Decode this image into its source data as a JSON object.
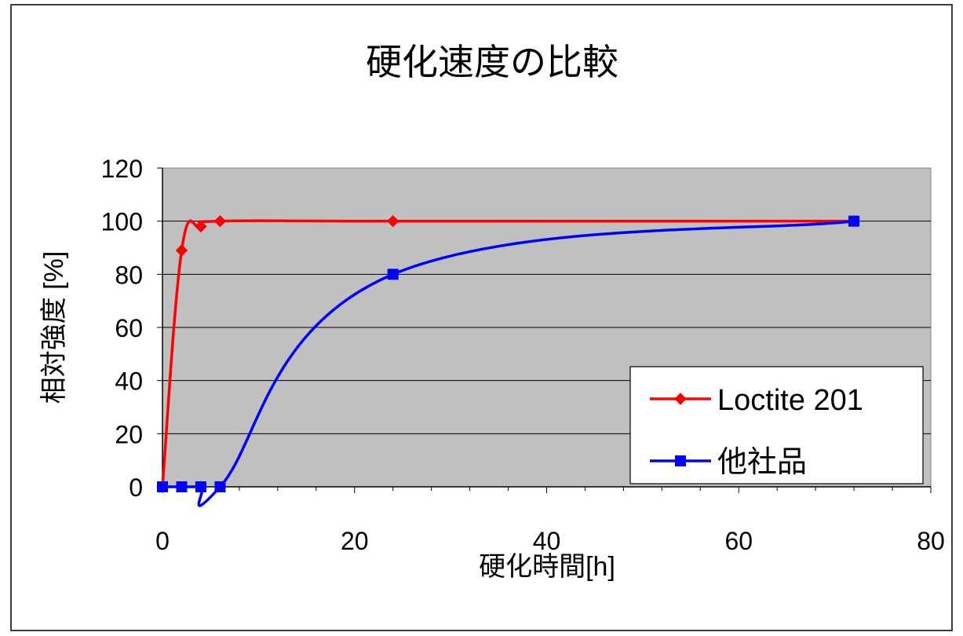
{
  "chart_data": {
    "type": "line",
    "title": "硬化速度の比較",
    "xlabel": "硬化時間[h]",
    "ylabel": "相対強度 [%]",
    "xlim": [
      0,
      80
    ],
    "ylim": [
      0,
      120
    ],
    "x_ticks": [
      "0",
      "20",
      "40",
      "60",
      "80"
    ],
    "y_ticks": [
      "0",
      "20",
      "40",
      "60",
      "80",
      "100",
      "120"
    ],
    "grid": "horizontal",
    "legend_position": "bottom-right",
    "plot_background": "#c0c0c0",
    "series": [
      {
        "name": "Loctite 201",
        "color": "#ff0000",
        "marker": "diamond",
        "x": [
          0,
          2,
          4,
          6,
          24,
          72
        ],
        "y": [
          0,
          89,
          98,
          100,
          100,
          100
        ]
      },
      {
        "name": "他社品",
        "color": "#0000ff",
        "marker": "square",
        "x": [
          0,
          2,
          4,
          6,
          24,
          72
        ],
        "y": [
          0,
          0,
          0,
          0,
          80,
          100
        ]
      }
    ]
  }
}
